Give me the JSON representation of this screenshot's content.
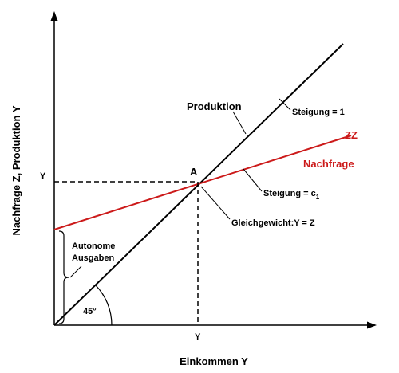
{
  "axes": {
    "y_label": "Nachfrage Z, Produktion Y",
    "x_label": "Einkommen Y"
  },
  "labels": {
    "production": "Produktion",
    "slope_one": "Steigung = 1",
    "zz": "ZZ",
    "demand": "Nachfrage",
    "point": "A",
    "y_left": "Y",
    "y_bottom": "Y",
    "slope_c": "Steigung = c",
    "slope_c_sub": "1",
    "equilibrium": "Gleichgewicht:Y = Z",
    "autonomous_1": "Autonome",
    "autonomous_2": "Ausgaben",
    "angle": "45°"
  }
}
